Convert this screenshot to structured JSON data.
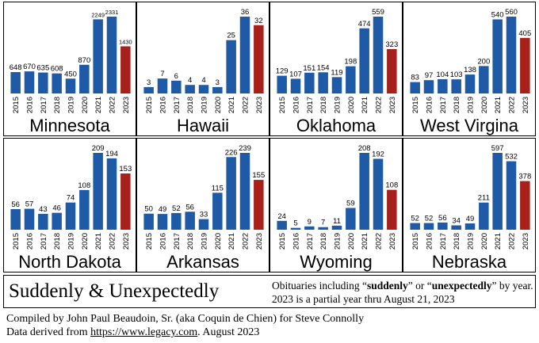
{
  "chart_data": {
    "type": "bar",
    "categories": [
      "2015",
      "2016",
      "2017",
      "2018",
      "2019",
      "2020",
      "2021",
      "2022",
      "2023"
    ],
    "colors": {
      "full_year": "#1f5aa6",
      "partial_year": "#a8201a"
    },
    "panels": [
      {
        "name": "Minnesota",
        "values": [
          648,
          670,
          635,
          608,
          450,
          870,
          2249,
          2331,
          1430
        ]
      },
      {
        "name": "Hawaii",
        "values": [
          3,
          7,
          6,
          4,
          4,
          3,
          25,
          36,
          32
        ]
      },
      {
        "name": "Oklahoma",
        "values": [
          129,
          107,
          151,
          154,
          119,
          198,
          474,
          559,
          323
        ]
      },
      {
        "name": "West Virgina",
        "values": [
          83,
          97,
          104,
          103,
          138,
          200,
          540,
          560,
          405
        ]
      },
      {
        "name": "North Dakota",
        "values": [
          56,
          57,
          43,
          46,
          74,
          108,
          209,
          194,
          153
        ]
      },
      {
        "name": "Arkansas",
        "values": [
          50,
          49,
          52,
          56,
          33,
          115,
          226,
          239,
          155
        ]
      },
      {
        "name": "Wyoming",
        "values": [
          24,
          5,
          9,
          7,
          11,
          59,
          208,
          192,
          108
        ]
      },
      {
        "name": "Nebraska",
        "values": [
          52,
          52,
          56,
          34,
          49,
          211,
          597,
          532,
          378
        ]
      }
    ]
  },
  "caption": {
    "title": "Suddenly & Unexpectedly",
    "note_prefix": "Obituaries including “",
    "note_word1": "suddenly",
    "note_mid": "” or “",
    "note_word2": "unexpectedly",
    "note_suffix": "” by year.",
    "note_line2": "2023 is a partial year thru August 21, 2023"
  },
  "credits": {
    "line1": "Compiled by John Paul Beaudoin, Sr. (aka Coquin de Chien) for Steve Connolly",
    "line2_prefix": "Data derived from ",
    "link_text": "https://www.legacy.com",
    "line2_suffix": ". August 2023"
  }
}
